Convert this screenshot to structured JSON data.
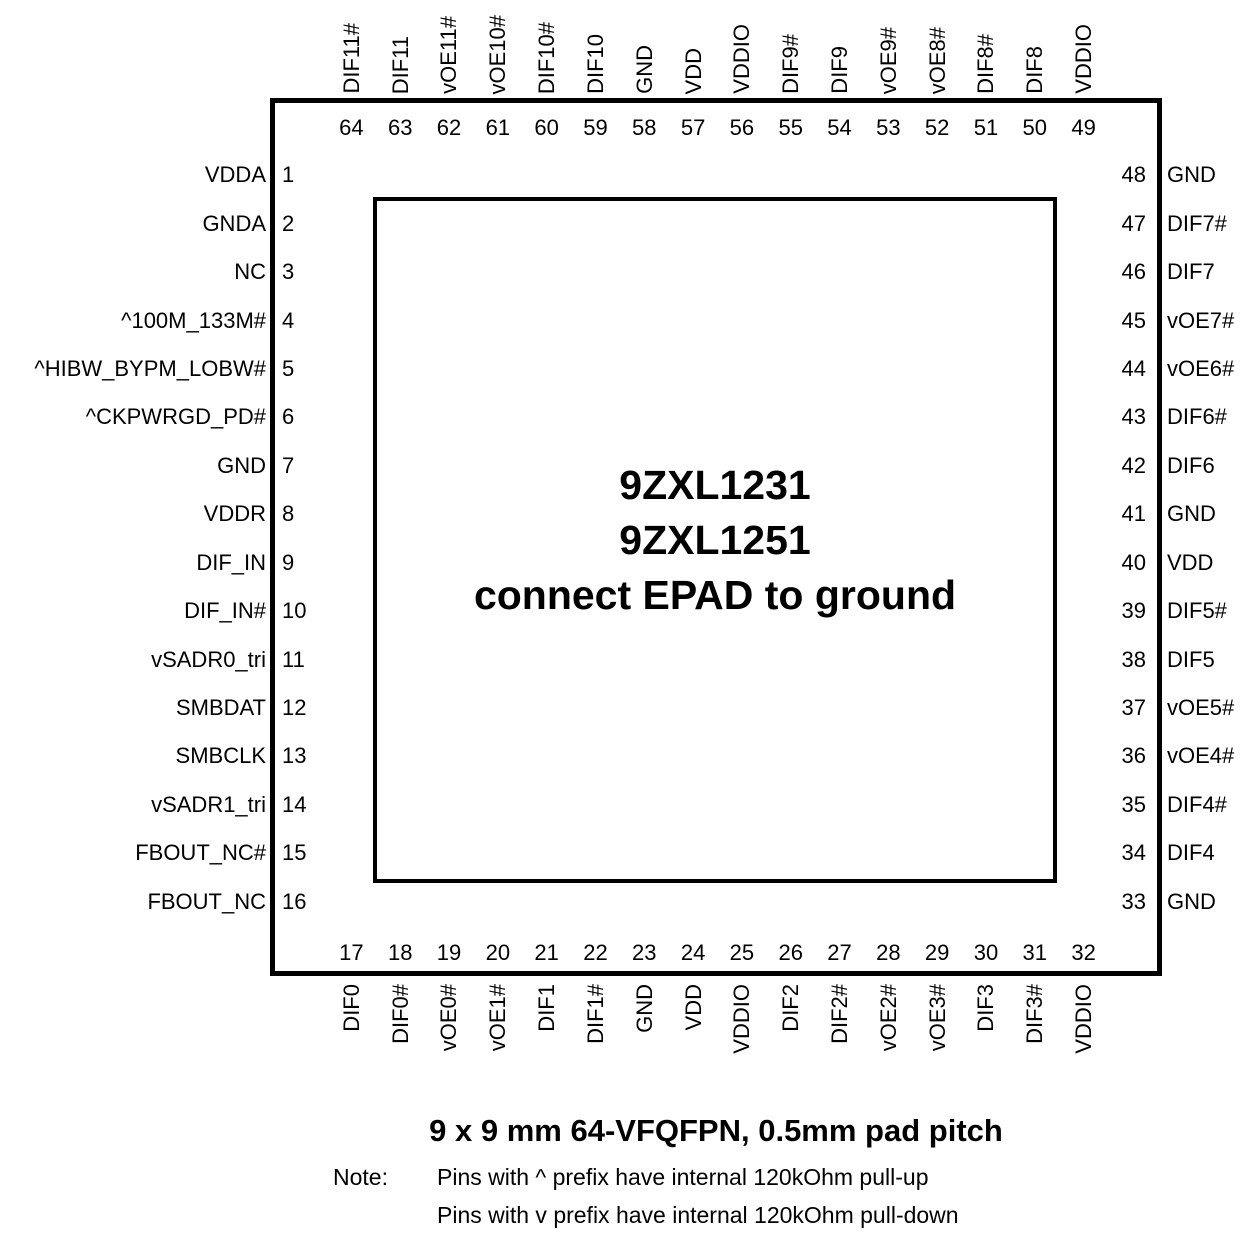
{
  "diagram": {
    "ink_color": "#000000",
    "background_color": "#ffffff",
    "part_titles": [
      "9ZXL1231",
      "9ZXL1251"
    ],
    "epad_text": "connect EPAD to ground",
    "package_title": "9 x 9 mm 64-VFQFPN, 0.5mm pad pitch",
    "note_label": "Note:",
    "note_lines": [
      "Pins with ^ prefix have internal 120kOhm pull-up",
      "Pins with v prefix have internal 120kOhm pull-down"
    ],
    "pins": {
      "top": [
        {
          "num": "64",
          "label": "DIF11#"
        },
        {
          "num": "63",
          "label": "DIF11"
        },
        {
          "num": "62",
          "label": "vOE11#"
        },
        {
          "num": "61",
          "label": "vOE10#"
        },
        {
          "num": "60",
          "label": "DIF10#"
        },
        {
          "num": "59",
          "label": "DIF10"
        },
        {
          "num": "58",
          "label": "GND"
        },
        {
          "num": "57",
          "label": "VDD"
        },
        {
          "num": "56",
          "label": "VDDIO"
        },
        {
          "num": "55",
          "label": "DIF9#"
        },
        {
          "num": "54",
          "label": "DIF9"
        },
        {
          "num": "53",
          "label": "vOE9#"
        },
        {
          "num": "52",
          "label": "vOE8#"
        },
        {
          "num": "51",
          "label": "DIF8#"
        },
        {
          "num": "50",
          "label": "DIF8"
        },
        {
          "num": "49",
          "label": "VDDIO"
        }
      ],
      "left": [
        {
          "num": "1",
          "label": "VDDA"
        },
        {
          "num": "2",
          "label": "GNDA"
        },
        {
          "num": "3",
          "label": "NC"
        },
        {
          "num": "4",
          "label": "^100M_133M#"
        },
        {
          "num": "5",
          "label": "^HIBW_BYPM_LOBW#"
        },
        {
          "num": "6",
          "label": "^CKPWRGD_PD#"
        },
        {
          "num": "7",
          "label": "GND"
        },
        {
          "num": "8",
          "label": "VDDR"
        },
        {
          "num": "9",
          "label": "DIF_IN"
        },
        {
          "num": "10",
          "label": "DIF_IN#"
        },
        {
          "num": "11",
          "label": "vSADR0_tri"
        },
        {
          "num": "12",
          "label": "SMBDAT"
        },
        {
          "num": "13",
          "label": "SMBCLK"
        },
        {
          "num": "14",
          "label": "vSADR1_tri"
        },
        {
          "num": "15",
          "label": "FBOUT_NC#"
        },
        {
          "num": "16",
          "label": "FBOUT_NC"
        }
      ],
      "right": [
        {
          "num": "48",
          "label": "GND"
        },
        {
          "num": "47",
          "label": "DIF7#"
        },
        {
          "num": "46",
          "label": "DIF7"
        },
        {
          "num": "45",
          "label": "vOE7#"
        },
        {
          "num": "44",
          "label": "vOE6#"
        },
        {
          "num": "43",
          "label": "DIF6#"
        },
        {
          "num": "42",
          "label": "DIF6"
        },
        {
          "num": "41",
          "label": "GND"
        },
        {
          "num": "40",
          "label": "VDD"
        },
        {
          "num": "39",
          "label": "DIF5#"
        },
        {
          "num": "38",
          "label": "DIF5"
        },
        {
          "num": "37",
          "label": "vOE5#"
        },
        {
          "num": "36",
          "label": "vOE4#"
        },
        {
          "num": "35",
          "label": "DIF4#"
        },
        {
          "num": "34",
          "label": "DIF4"
        },
        {
          "num": "33",
          "label": "GND"
        }
      ],
      "bottom": [
        {
          "num": "17",
          "label": "DIF0"
        },
        {
          "num": "18",
          "label": "DIF0#"
        },
        {
          "num": "19",
          "label": "vOE0#"
        },
        {
          "num": "20",
          "label": "vOE1#"
        },
        {
          "num": "21",
          "label": "DIF1"
        },
        {
          "num": "22",
          "label": "DIF1#"
        },
        {
          "num": "23",
          "label": "GND"
        },
        {
          "num": "24",
          "label": "VDD"
        },
        {
          "num": "25",
          "label": "VDDIO"
        },
        {
          "num": "26",
          "label": "DIF2"
        },
        {
          "num": "27",
          "label": "DIF2#"
        },
        {
          "num": "28",
          "label": "vOE2#"
        },
        {
          "num": "29",
          "label": "vOE3#"
        },
        {
          "num": "30",
          "label": "DIF3"
        },
        {
          "num": "31",
          "label": "DIF3#"
        },
        {
          "num": "32",
          "label": "VDDIO"
        }
      ]
    }
  }
}
